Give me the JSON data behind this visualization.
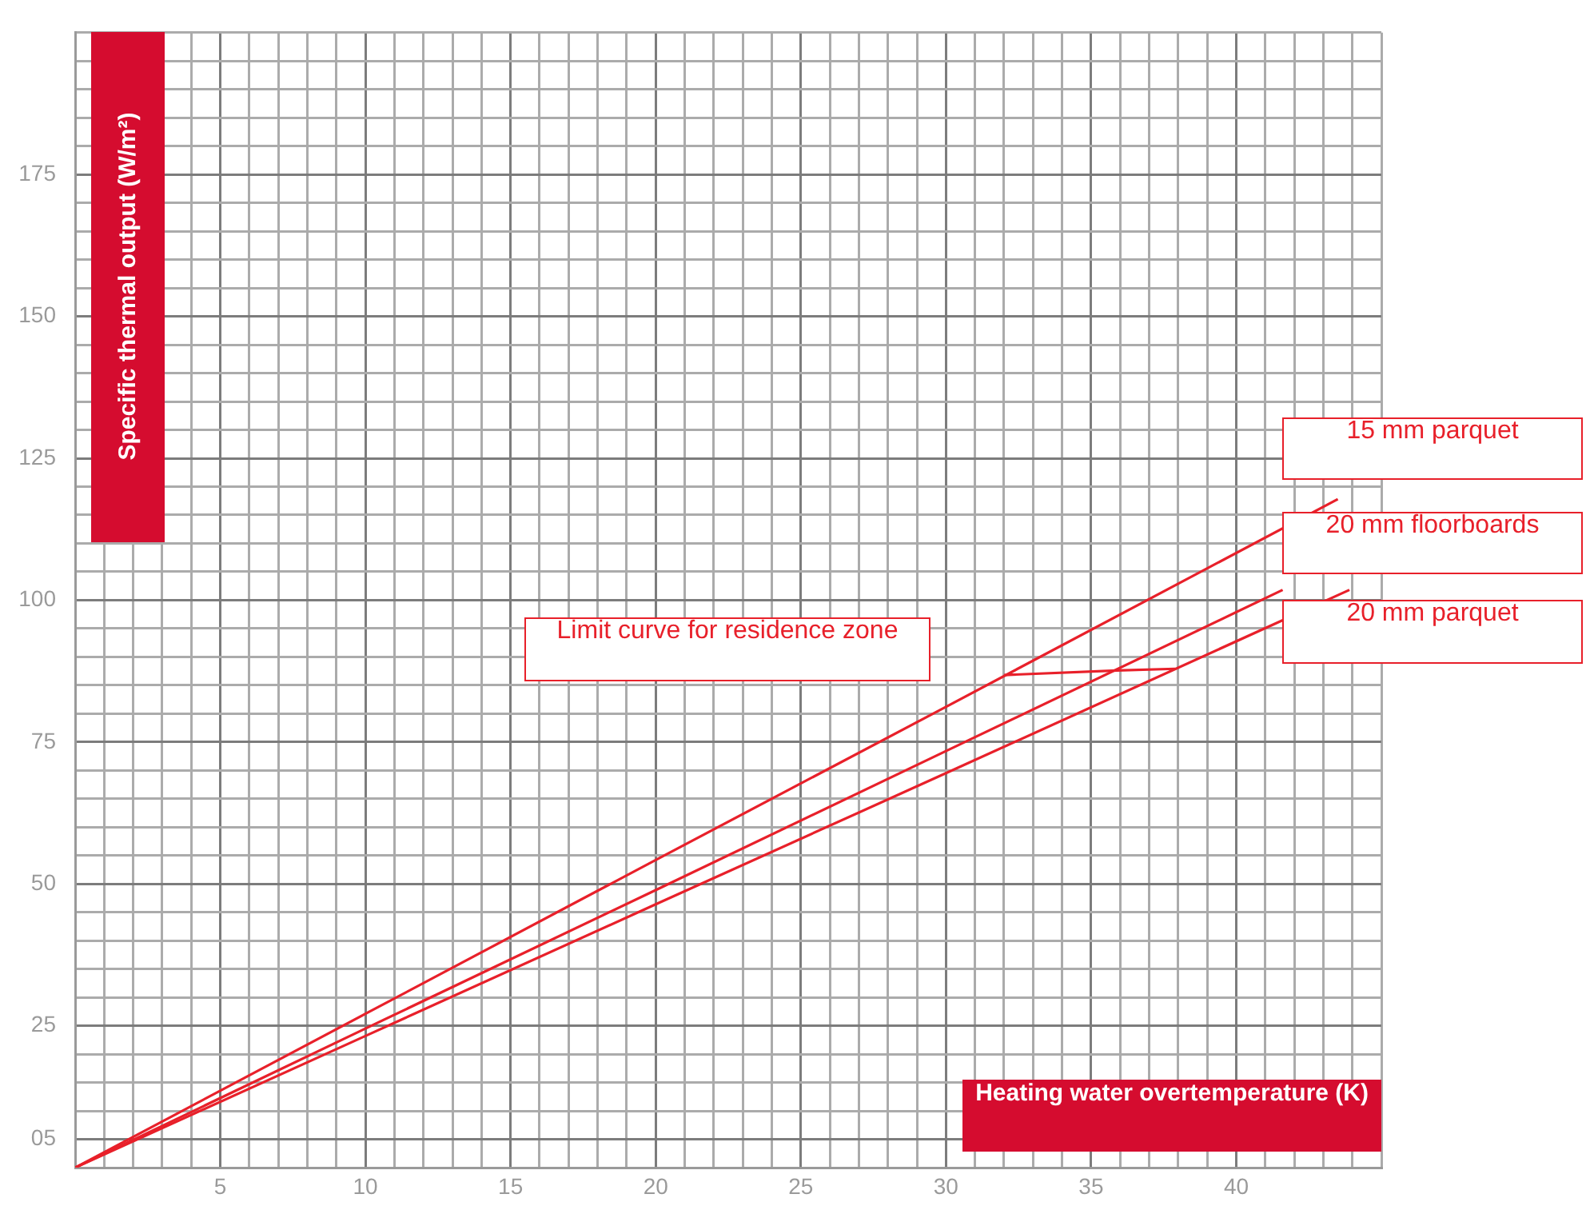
{
  "chart_data": {
    "type": "line",
    "xlabel": "Heating water overtemperature (K)",
    "ylabel": "Specific thermal output (W/m²)",
    "xlim": [
      0,
      45
    ],
    "ylim": [
      0,
      200
    ],
    "xticks": [
      {
        "value": 0,
        "label": null
      },
      {
        "value": 1,
        "label": null
      },
      {
        "value": 2,
        "label": null
      },
      {
        "value": 3,
        "label": null
      },
      {
        "value": 4,
        "label": null
      },
      5,
      {
        "value": 6,
        "label": null
      },
      {
        "value": 7,
        "label": null
      },
      {
        "value": 8,
        "label": null
      },
      {
        "value": 9,
        "label": null
      },
      10,
      {
        "value": 11,
        "label": null
      },
      {
        "value": 12,
        "label": null
      },
      {
        "value": 13,
        "label": null
      },
      {
        "value": 14,
        "label": null
      },
      15,
      {
        "value": 16,
        "label": null
      },
      {
        "value": 17,
        "label": null
      },
      {
        "value": 18,
        "label": null
      },
      {
        "value": 19,
        "label": null
      },
      20,
      {
        "value": 21,
        "label": null
      },
      {
        "value": 22,
        "label": null
      },
      {
        "value": 23,
        "label": null
      },
      {
        "value": 24,
        "label": null
      },
      25,
      {
        "value": 26,
        "label": null
      },
      {
        "value": 27,
        "label": null
      },
      {
        "value": 28,
        "label": null
      },
      {
        "value": 29,
        "label": null
      },
      30,
      {
        "value": 31,
        "label": null
      },
      {
        "value": 32,
        "label": null
      },
      {
        "value": 33,
        "label": null
      },
      {
        "value": 34,
        "label": null
      },
      35,
      {
        "value": 36,
        "label": null
      },
      {
        "value": 37,
        "label": null
      },
      {
        "value": 38,
        "label": null
      },
      {
        "value": 39,
        "label": null
      },
      40,
      {
        "value": 41,
        "label": null
      },
      {
        "value": 42,
        "label": null
      },
      {
        "value": 43,
        "label": null
      },
      {
        "value": 44,
        "label": null
      },
      {
        "value": 45,
        "label": null
      }
    ],
    "yticks": [
      {
        "value": 0,
        "label": null
      },
      {
        "value": 5,
        "label": "05"
      },
      {
        "value": 10,
        "label": null
      },
      {
        "value": 15,
        "label": null
      },
      {
        "value": 20,
        "label": null
      },
      25,
      {
        "value": 30,
        "label": null
      },
      {
        "value": 35,
        "label": null
      },
      {
        "value": 40,
        "label": null
      },
      {
        "value": 45,
        "label": null
      },
      50,
      {
        "value": 55,
        "label": null
      },
      {
        "value": 60,
        "label": null
      },
      {
        "value": 65,
        "label": null
      },
      {
        "value": 70,
        "label": null
      },
      75,
      {
        "value": 80,
        "label": null
      },
      {
        "value": 85,
        "label": null
      },
      {
        "value": 90,
        "label": null
      },
      {
        "value": 95,
        "label": null
      },
      100,
      {
        "value": 105,
        "label": null
      },
      {
        "value": 110,
        "label": null
      },
      {
        "value": 115,
        "label": null
      },
      {
        "value": 120,
        "label": null
      },
      125,
      {
        "value": 130,
        "label": null
      },
      {
        "value": 135,
        "label": null
      },
      {
        "value": 140,
        "label": null
      },
      {
        "value": 145,
        "label": null
      },
      150,
      {
        "value": 155,
        "label": null
      },
      {
        "value": 160,
        "label": null
      },
      {
        "value": 165,
        "label": null
      },
      {
        "value": 170,
        "label": null
      },
      175,
      {
        "value": 180,
        "label": null
      },
      {
        "value": 185,
        "label": null
      },
      {
        "value": 190,
        "label": null
      },
      {
        "value": 195,
        "label": null
      },
      {
        "value": 200,
        "label": null
      }
    ],
    "grid": true,
    "legend": false,
    "marker": "none",
    "line_style": "solid",
    "series": [
      {
        "name": "15 mm parquet",
        "color": "#e8202a",
        "x": [
          0,
          10,
          20,
          30,
          43.5
        ],
        "values": [
          0,
          27.1,
          54.2,
          81.2,
          117.8
        ]
      },
      {
        "name": "20 mm floorboards",
        "color": "#e8202a",
        "x": [
          0,
          10,
          20,
          30,
          41.6
        ],
        "values": [
          0,
          24.5,
          48.9,
          73.4,
          101.8
        ]
      },
      {
        "name": "20 mm parquet",
        "color": "#e8202a",
        "x": [
          0,
          10,
          20,
          30,
          43.9
        ],
        "values": [
          0,
          23.2,
          46.4,
          69.5,
          101.8
        ]
      },
      {
        "name": "Limit curve for residence zone",
        "color": "#e8202a",
        "x": [
          32,
          35.9,
          37.9
        ],
        "values": [
          86.8,
          87.6,
          87.9
        ]
      }
    ]
  }
}
